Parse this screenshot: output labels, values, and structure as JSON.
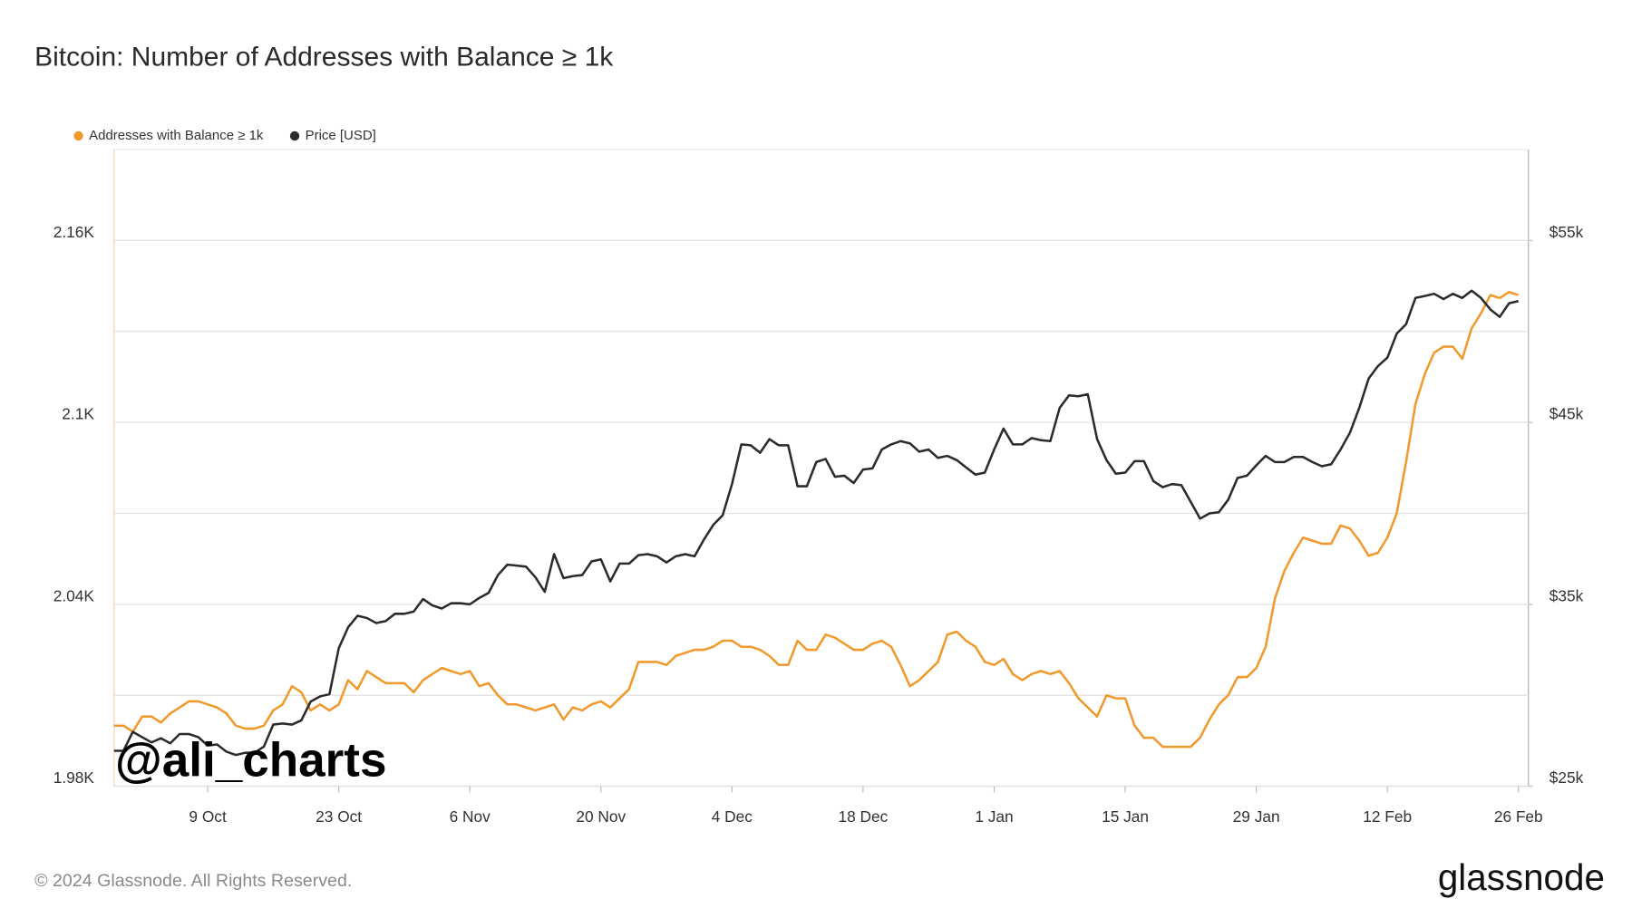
{
  "chart_data": {
    "type": "line",
    "title": "Bitcoin: Number of Addresses with Balance ≥ 1k",
    "watermark": "@ali_charts",
    "footer": "© 2024 Glassnode. All Rights Reserved.",
    "logo": "glassnode",
    "legend": "top-left",
    "grid": true,
    "categories": [
      null,
      null,
      null,
      null,
      null,
      null,
      null,
      null,
      null,
      null,
      "9 Oct",
      null,
      null,
      null,
      null,
      null,
      null,
      null,
      null,
      null,
      null,
      null,
      null,
      null,
      "23 Oct",
      null,
      null,
      null,
      null,
      null,
      null,
      null,
      null,
      null,
      null,
      null,
      null,
      null,
      "6 Nov",
      null,
      null,
      null,
      null,
      null,
      null,
      null,
      null,
      null,
      null,
      null,
      null,
      null,
      "20 Nov",
      null,
      null,
      null,
      null,
      null,
      null,
      null,
      null,
      null,
      null,
      null,
      null,
      null,
      "4 Dec",
      null,
      null,
      null,
      null,
      null,
      null,
      null,
      null,
      null,
      null,
      null,
      null,
      null,
      "18 Dec",
      null,
      null,
      null,
      null,
      null,
      null,
      null,
      null,
      null,
      null,
      null,
      null,
      null,
      "1 Jan",
      null,
      null,
      null,
      null,
      null,
      null,
      null,
      null,
      null,
      null,
      null,
      null,
      null,
      "15 Jan",
      null,
      null,
      null,
      null,
      null,
      null,
      null,
      null,
      null,
      null,
      null,
      null,
      null,
      "29 Jan",
      null,
      null,
      null,
      null,
      null,
      null,
      null,
      null,
      null,
      null,
      null,
      null,
      null,
      "12 Feb",
      null,
      null,
      null,
      null,
      null,
      null,
      null,
      null,
      null,
      null,
      null,
      null,
      null,
      "26 Feb"
    ],
    "ylim": [
      1980,
      2190
    ],
    "yticks": [
      {
        "value": 1980,
        "label": "1.98K"
      },
      {
        "value": 2040,
        "label": "2.04K"
      },
      {
        "value": 2100,
        "label": "2.1K"
      },
      {
        "value": 2160,
        "label": "2.16K"
      }
    ],
    "minor_yticks": [
      2010,
      2070,
      2130
    ],
    "y2lim": [
      25000,
      60000
    ],
    "y2ticks": [
      {
        "value": 25000,
        "label": "$25k"
      },
      {
        "value": 35000,
        "label": "$35k"
      },
      {
        "value": 45000,
        "label": "$45k"
      },
      {
        "value": 55000,
        "label": "$55k"
      }
    ],
    "series": [
      {
        "name": "Addresses with Balance ≥ 1k",
        "color": "#f0992c",
        "values": [
          2000,
          2000,
          1998,
          2003,
          2003,
          2001,
          2004,
          2006,
          2008,
          2008,
          2007,
          2006,
          2004,
          2000,
          1999,
          1999,
          2000,
          2005,
          2007,
          2013,
          2011,
          2005,
          2007,
          2005,
          2007,
          2015,
          2012,
          2018,
          2016,
          2014,
          2014,
          2014,
          2011,
          2015,
          2017,
          2019,
          2018,
          2017,
          2018,
          2013,
          2014,
          2010,
          2007,
          2007,
          2006,
          2005,
          2006,
          2007,
          2002,
          2006,
          2005,
          2007,
          2008,
          2006,
          2009,
          2012,
          2021,
          2021,
          2021,
          2020,
          2023,
          2024,
          2025,
          2025,
          2026,
          2028,
          2028,
          2026,
          2026,
          2025,
          2023,
          2020,
          2020,
          2028,
          2025,
          2025,
          2030,
          2029,
          2027,
          2025,
          2025,
          2027,
          2028,
          2026,
          2020,
          2013,
          2015,
          2018,
          2021,
          2030,
          2031,
          2028,
          2026,
          2021,
          2020,
          2022,
          2017,
          2015,
          2017,
          2018,
          2017,
          2018,
          2014,
          2009,
          2006,
          2003,
          2010,
          2009,
          2009,
          2000,
          1996,
          1996,
          1993,
          1993,
          1993,
          1993,
          1996,
          2002,
          2007,
          2010,
          2016,
          2016,
          2019,
          2026,
          2042,
          2051,
          2057,
          2062,
          2061,
          2060,
          2060,
          2066,
          2065,
          2061,
          2056,
          2057,
          2062,
          2070,
          2087,
          2106,
          2116,
          2123,
          2125,
          2125,
          2121,
          2131,
          2136,
          2142,
          2141,
          2143,
          2142
        ]
      },
      {
        "name": "Price [USD]",
        "color": "#2b2b2b",
        "axis": "y2",
        "values": [
          26950,
          26950,
          27990,
          27700,
          27410,
          27640,
          27360,
          27870,
          27870,
          27700,
          27240,
          27300,
          26900,
          26720,
          26840,
          26840,
          27180,
          28390,
          28450,
          28390,
          28620,
          29660,
          29940,
          30060,
          32590,
          33740,
          34370,
          34250,
          33970,
          34080,
          34480,
          34480,
          34600,
          35290,
          34940,
          34770,
          35060,
          35060,
          35000,
          35350,
          35630,
          36610,
          37180,
          37130,
          37070,
          36490,
          35690,
          37760,
          36440,
          36550,
          36610,
          37360,
          37470,
          36260,
          37240,
          37240,
          37700,
          37760,
          37640,
          37300,
          37640,
          37760,
          37640,
          38560,
          39370,
          39890,
          41610,
          43790,
          43740,
          43330,
          44080,
          43740,
          43740,
          41490,
          41490,
          42820,
          42990,
          42010,
          42070,
          41670,
          42410,
          42470,
          43510,
          43790,
          43970,
          43850,
          43390,
          43510,
          43050,
          43160,
          42930,
          42530,
          42130,
          42240,
          43510,
          44660,
          43790,
          43790,
          44140,
          44020,
          43970,
          45800,
          46490,
          46440,
          46550,
          44080,
          42930,
          42180,
          42240,
          42870,
          42870,
          41780,
          41440,
          41610,
          41550,
          40630,
          39710,
          40000,
          40060,
          40750,
          41950,
          42070,
          42640,
          43160,
          42820,
          42820,
          43100,
          43100,
          42820,
          42590,
          42700,
          43510,
          44430,
          45800,
          47410,
          48100,
          48560,
          49880,
          50400,
          51840,
          51950,
          52070,
          51780,
          52070,
          51840,
          52240,
          51840,
          51210,
          50800,
          51550,
          51670
        ]
      }
    ]
  }
}
